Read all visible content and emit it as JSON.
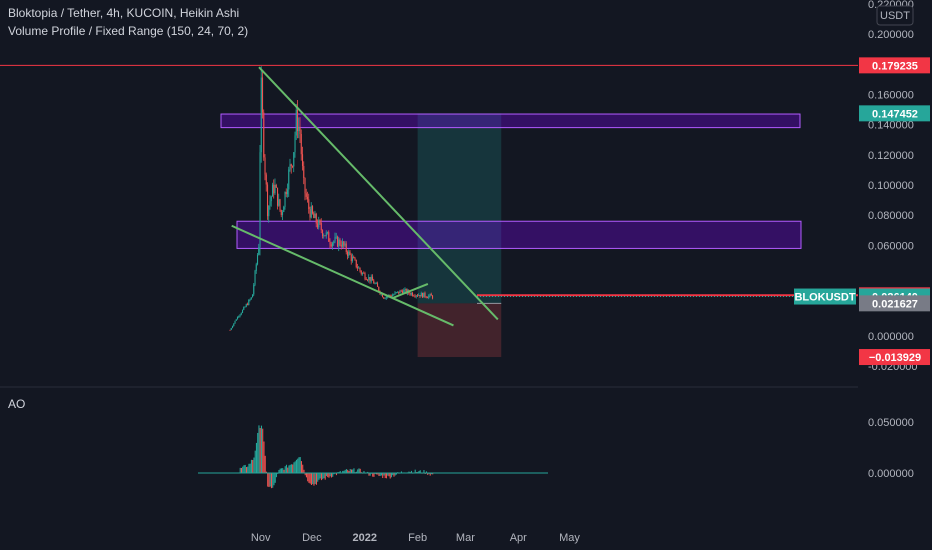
{
  "legend": {
    "title": "Bloktopia / Tether, 4h, KUCOIN, Heikin Ashi",
    "indicator": "Volume Profile / Fixed Range (150, 24, 70, 2)",
    "oscillator": "AO"
  },
  "currency_badge": "USDT",
  "colors": {
    "background": "#131722",
    "up": "#26a69a",
    "down": "#ef5350",
    "trendline": "#66bb6a",
    "zone_fill": "rgba(128,0,255,0.30)",
    "zone_border": "#b25cff",
    "target_fill": "rgba(38,166,154,0.22)",
    "stop_fill": "rgba(239,83,80,0.22)",
    "hline": "#f23645"
  },
  "chart_data": [
    {
      "type": "candlestick",
      "title": "Bloktopia / Tether, 4h, KUCOIN, Heikin Ashi",
      "ylim": [
        -0.02,
        0.22
      ],
      "y_ticks": [
        "0.220000",
        "0.200000",
        "0.160000",
        "0.140000",
        "0.120000",
        "0.100000",
        "0.080000",
        "0.060000",
        "0.000000",
        "-0.020000"
      ],
      "x_ticks": [
        "Nov",
        "Dec",
        "2022",
        "Feb",
        "Mar",
        "Apr",
        "May"
      ],
      "key_points": {
        "dates": [
          "2021-10-14",
          "2021-10-18",
          "2021-10-22",
          "2021-10-27",
          "2021-10-31",
          "2021-11-01",
          "2021-11-03",
          "2021-11-05",
          "2021-11-09",
          "2021-11-13",
          "2021-11-17",
          "2021-11-20",
          "2021-11-22",
          "2021-11-24",
          "2021-11-26",
          "2021-11-29",
          "2021-12-02",
          "2021-12-07",
          "2021-12-12",
          "2021-12-18",
          "2021-12-24",
          "2021-12-30",
          "2022-01-06",
          "2022-01-12",
          "2022-01-17",
          "2022-01-23",
          "2022-01-29",
          "2022-02-05",
          "2022-02-10"
        ],
        "close": [
          0.004,
          0.012,
          0.018,
          0.026,
          0.062,
          0.17,
          0.12,
          0.084,
          0.1,
          0.08,
          0.105,
          0.12,
          0.145,
          0.135,
          0.1,
          0.085,
          0.078,
          0.07,
          0.063,
          0.062,
          0.052,
          0.042,
          0.036,
          0.026,
          0.027,
          0.03,
          0.028,
          0.027,
          0.026
        ]
      },
      "price_labels": [
        {
          "value": "0.179235",
          "color": "#f23645"
        },
        {
          "value": "0.147452",
          "color": "#26a69a"
        },
        {
          "value": "0.026948",
          "color": "#f23645"
        },
        {
          "value": "0.026140",
          "color": "#26a69a",
          "symbol": "BLOKUSDT"
        },
        {
          "value": "0.021627",
          "color": "#787b86"
        },
        {
          "value": "−0.013929",
          "color": "#f23645"
        }
      ],
      "horizontal_line": 0.179235,
      "entry_line": 0.026948,
      "zones": [
        {
          "from": 0.138,
          "to": 0.147
        },
        {
          "from": 0.058,
          "to": 0.076
        }
      ],
      "position": {
        "entry": 0.021627,
        "target": 0.147452,
        "stop": -0.013929,
        "from": "2022-02-01",
        "to": "2022-03-22"
      },
      "trendlines": [
        {
          "from": [
            "2021-10-31",
            0.178
          ],
          "to": [
            "2022-03-20",
            0.011
          ]
        },
        {
          "from": [
            "2021-10-15",
            0.073
          ],
          "to": [
            "2022-02-22",
            0.007
          ]
        },
        {
          "from": [
            "2022-01-17",
            0.025
          ],
          "to": [
            "2022-02-07",
            0.0345
          ]
        }
      ]
    },
    {
      "type": "histogram",
      "title": "AO",
      "ylim": [
        -0.02,
        0.065
      ],
      "y_ticks": [
        "0.050000",
        "0.000000"
      ],
      "x_ticks": [
        "Nov",
        "Dec",
        "2022",
        "Feb",
        "Mar",
        "Apr",
        "May"
      ],
      "key_points": {
        "dates": [
          "2021-10-20",
          "2021-10-25",
          "2021-10-28",
          "2021-10-31",
          "2021-11-02",
          "2021-11-05",
          "2021-11-08",
          "2021-11-12",
          "2021-11-16",
          "2021-11-20",
          "2021-11-24",
          "2021-11-28",
          "2021-12-02",
          "2021-12-06",
          "2021-12-12",
          "2021-12-20",
          "2021-12-28",
          "2022-01-05",
          "2022-01-15",
          "2022-01-25",
          "2022-02-05",
          "2022-02-10"
        ],
        "values": [
          0.004,
          0.008,
          0.015,
          0.045,
          0.048,
          -0.012,
          -0.016,
          0.003,
          0.006,
          0.01,
          0.018,
          -0.006,
          -0.012,
          -0.007,
          -0.003,
          0.002,
          0.003,
          -0.002,
          -0.004,
          0.002,
          0.001,
          -0.002
        ]
      }
    }
  ]
}
